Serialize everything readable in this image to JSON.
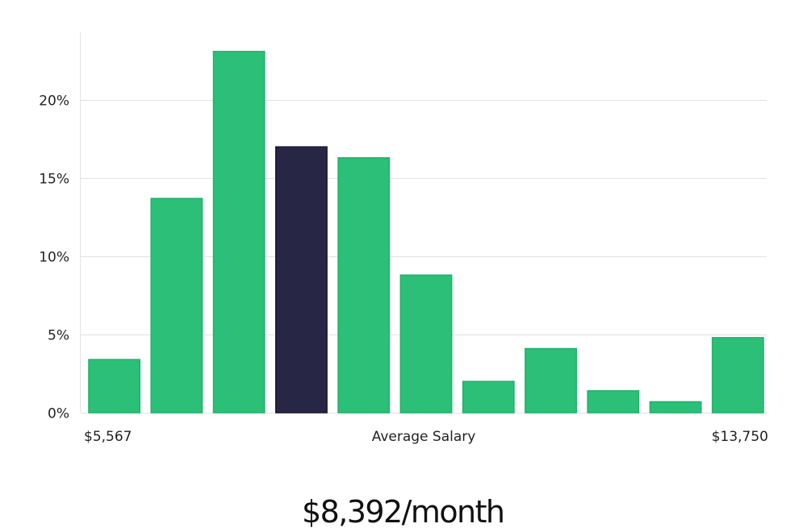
{
  "chart_data": {
    "type": "bar",
    "title": "",
    "xlabel": "Average Salary",
    "ylabel": "",
    "x_min_label": "$5,567",
    "x_max_label": "$13,750",
    "values": [
      3.4,
      13.7,
      23.1,
      17.0,
      16.3,
      8.8,
      2.0,
      4.1,
      1.4,
      0.7,
      4.8
    ],
    "highlight_index": 3,
    "yticks": [
      0,
      5,
      10,
      15,
      20
    ],
    "ytick_labels": [
      "0%",
      "5%",
      "10%",
      "15%",
      "20%"
    ],
    "ylim": [
      0,
      24.2
    ],
    "grid": true,
    "colors": {
      "bar": "#2bbf77",
      "highlight": "#282645",
      "grid": "#e2e2e2"
    }
  },
  "headline": "$8,392/month"
}
